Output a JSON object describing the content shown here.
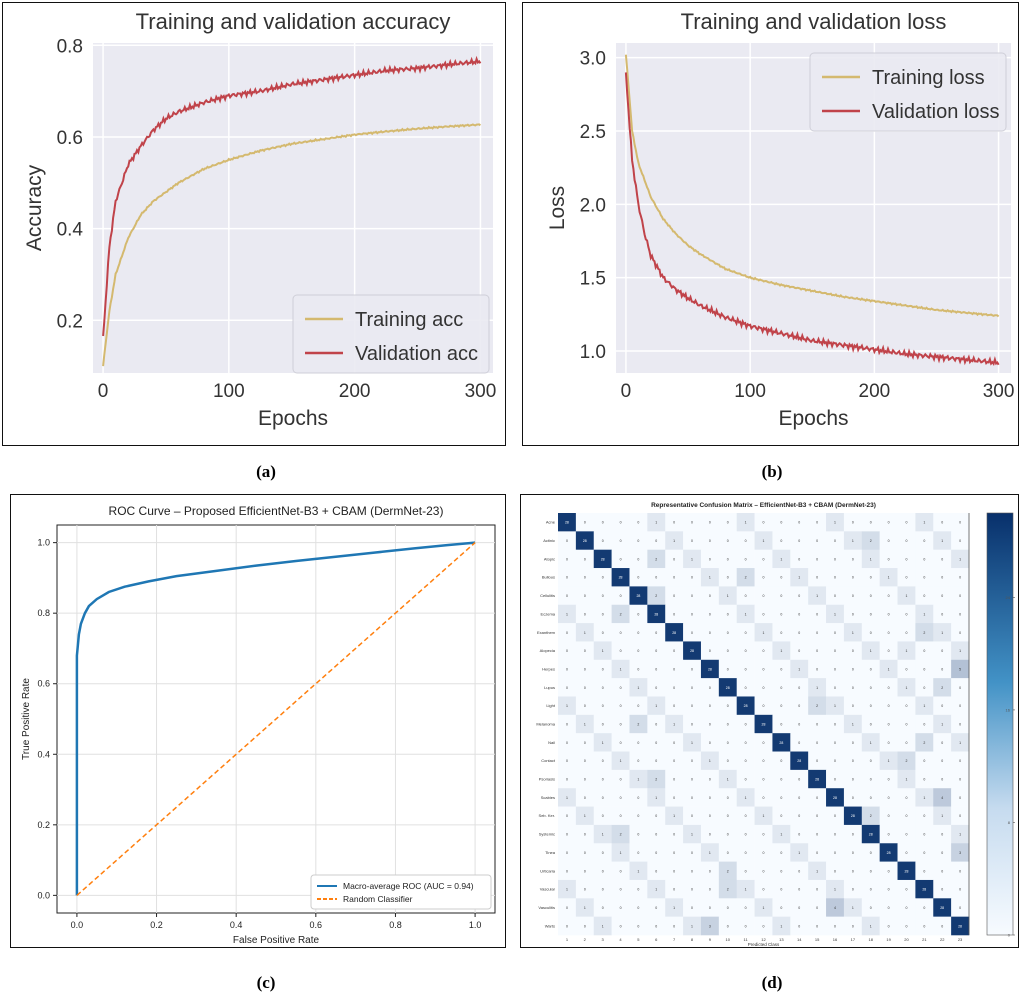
{
  "captions": {
    "a": "(a)",
    "b": "(b)",
    "c": "(c)",
    "d": "(d)"
  },
  "colors": {
    "train": "#d4b96f",
    "val": "#c0434a",
    "plot_bg": "#eaeaf2",
    "roc": "#1f77b4",
    "random": "#ff7f0e",
    "cm_dark": "#08306b",
    "cm_light": "#f7fbff"
  },
  "chart_data": [
    {
      "id": "a",
      "type": "line",
      "title": "Training and validation accuracy",
      "xlabel": "Epochs",
      "ylabel": "Accuracy",
      "xlim": [
        -8,
        310
      ],
      "ylim": [
        0.085,
        0.805
      ],
      "xticks": [
        0,
        100,
        200,
        300
      ],
      "xtick_labels": [
        "0",
        "100",
        "200",
        "300"
      ],
      "yticks": [
        0.2,
        0.4,
        0.6,
        0.8
      ],
      "ytick_labels": [
        "0.2",
        "0.4",
        "0.6",
        "0.8"
      ],
      "grid": true,
      "legend_position": "lower-right",
      "series": [
        {
          "name": "Training acc",
          "color": "#d4b96f",
          "x": [
            0,
            5,
            10,
            20,
            30,
            40,
            50,
            60,
            80,
            100,
            125,
            150,
            175,
            200,
            225,
            250,
            275,
            300
          ],
          "y": [
            0.1,
            0.22,
            0.3,
            0.38,
            0.43,
            0.46,
            0.48,
            0.5,
            0.53,
            0.55,
            0.57,
            0.585,
            0.595,
            0.605,
            0.612,
            0.618,
            0.623,
            0.627
          ]
        },
        {
          "name": "Validation acc",
          "color": "#c0434a",
          "x": [
            0,
            5,
            10,
            15,
            20,
            30,
            40,
            50,
            60,
            80,
            100,
            125,
            150,
            175,
            200,
            225,
            250,
            275,
            300
          ],
          "y": [
            0.16,
            0.36,
            0.46,
            0.5,
            0.54,
            0.58,
            0.615,
            0.64,
            0.655,
            0.675,
            0.69,
            0.7,
            0.715,
            0.725,
            0.735,
            0.745,
            0.75,
            0.758,
            0.765
          ]
        }
      ]
    },
    {
      "id": "b",
      "type": "line",
      "title": "Training and validation loss",
      "xlabel": "Epochs",
      "ylabel": "Loss",
      "xlim": [
        -8,
        310
      ],
      "ylim": [
        0.85,
        3.1
      ],
      "xticks": [
        0,
        100,
        200,
        300
      ],
      "xtick_labels": [
        "0",
        "100",
        "200",
        "300"
      ],
      "yticks": [
        1.0,
        1.5,
        2.0,
        2.5,
        3.0
      ],
      "ytick_labels": [
        "1.0",
        "1.5",
        "2.0",
        "2.5",
        "3.0"
      ],
      "grid": true,
      "legend_position": "upper-right",
      "series": [
        {
          "name": "Training loss",
          "color": "#d4b96f",
          "x": [
            0,
            5,
            10,
            20,
            30,
            40,
            50,
            60,
            80,
            100,
            125,
            150,
            175,
            200,
            225,
            250,
            275,
            300
          ],
          "y": [
            3.02,
            2.5,
            2.28,
            2.05,
            1.9,
            1.8,
            1.72,
            1.66,
            1.56,
            1.5,
            1.45,
            1.41,
            1.37,
            1.34,
            1.31,
            1.28,
            1.26,
            1.24
          ]
        },
        {
          "name": "Validation loss",
          "color": "#c0434a",
          "x": [
            0,
            5,
            10,
            15,
            20,
            30,
            40,
            50,
            60,
            80,
            100,
            125,
            150,
            175,
            200,
            225,
            250,
            275,
            300
          ],
          "y": [
            2.88,
            2.3,
            2.0,
            1.8,
            1.65,
            1.5,
            1.42,
            1.36,
            1.31,
            1.23,
            1.17,
            1.12,
            1.07,
            1.04,
            1.01,
            0.98,
            0.96,
            0.94,
            0.92
          ]
        }
      ]
    },
    {
      "id": "c",
      "type": "line",
      "title": "ROC Curve – Proposed EfficientNet-B3 + CBAM (DermNet-23)",
      "xlabel": "False Positive Rate",
      "ylabel": "True Positive Rate",
      "xlim": [
        -0.05,
        1.05
      ],
      "ylim": [
        -0.05,
        1.05
      ],
      "xticks": [
        0.0,
        0.2,
        0.4,
        0.6,
        0.8,
        1.0
      ],
      "xtick_labels": [
        "0.0",
        "0.2",
        "0.4",
        "0.6",
        "0.8",
        "1.0"
      ],
      "yticks": [
        0.0,
        0.2,
        0.4,
        0.6,
        0.8,
        1.0
      ],
      "ytick_labels": [
        "0.0",
        "0.2",
        "0.4",
        "0.6",
        "0.8",
        "1.0"
      ],
      "grid": true,
      "legend_position": "lower-right",
      "series": [
        {
          "name": "Macro-average ROC (AUC = 0.94)",
          "color": "#1f77b4",
          "x": [
            0,
            0,
            0.005,
            0.01,
            0.02,
            0.03,
            0.05,
            0.08,
            0.12,
            0.18,
            0.25,
            0.35,
            0.45,
            0.55,
            0.65,
            0.75,
            0.85,
            0.93,
            1.0
          ],
          "y": [
            0,
            0.68,
            0.74,
            0.77,
            0.8,
            0.82,
            0.84,
            0.86,
            0.875,
            0.89,
            0.905,
            0.92,
            0.935,
            0.948,
            0.96,
            0.972,
            0.984,
            0.993,
            1.0
          ]
        },
        {
          "name": "Random Classifier",
          "color": "#ff7f0e",
          "dashed": true,
          "x": [
            0,
            1
          ],
          "y": [
            0,
            1
          ]
        }
      ]
    },
    {
      "id": "d",
      "type": "heatmap",
      "title": "Representative Confusion Matrix – EfficientNet-B3 + CBAM (DermNet-23)",
      "xlabel": "Predicted Class",
      "ylabel": "",
      "size": 23,
      "x_labels": [
        "1",
        "2",
        "3",
        "4",
        "5",
        "6",
        "7",
        "8",
        "9",
        "10",
        "11",
        "12",
        "13",
        "14",
        "15",
        "16",
        "17",
        "18",
        "19",
        "20",
        "21",
        "22",
        "23"
      ],
      "y_labels": [
        "Acne",
        "Actinic",
        "Atopic",
        "Bullous",
        "Cellulitis",
        "Eczema",
        "Exanthem",
        "Alopecia",
        "Herpes",
        "Lupus",
        "Light",
        "Melanoma",
        "Nail",
        "Contact",
        "Psoriasis",
        "Scabies",
        "Seb. Ker.",
        "Systemic",
        "Tinea",
        "Urticaria",
        "Vascular",
        "Vasculitis",
        "Warts"
      ],
      "diagonal_value": 28,
      "colorbar_ticks": [
        0,
        8,
        16,
        24
      ],
      "colorbar_max": 30,
      "highlights": [
        {
          "row": 8,
          "col": 22,
          "value": 5
        },
        {
          "row": 15,
          "col": 21,
          "value": 4
        },
        {
          "row": 21,
          "col": 15,
          "value": 4
        },
        {
          "row": 22,
          "col": 8,
          "value": 3
        },
        {
          "row": 18,
          "col": 22,
          "value": 3
        },
        {
          "row": 9,
          "col": 21,
          "value": 2
        },
        {
          "row": 12,
          "col": 20,
          "value": 2
        },
        {
          "row": 4,
          "col": 5,
          "value": 2
        },
        {
          "row": 2,
          "col": 5,
          "value": 2
        },
        {
          "row": 14,
          "col": 5,
          "value": 2
        },
        {
          "row": 16,
          "col": 17,
          "value": 2
        },
        {
          "row": 1,
          "col": 17,
          "value": 2
        },
        {
          "row": 19,
          "col": 9,
          "value": 2
        },
        {
          "row": 13,
          "col": 19,
          "value": 2
        },
        {
          "row": 5,
          "col": 3,
          "value": 2
        },
        {
          "row": 17,
          "col": 3,
          "value": 2
        },
        {
          "row": 11,
          "col": 4,
          "value": 2
        },
        {
          "row": 10,
          "col": 14,
          "value": 2
        },
        {
          "row": 6,
          "col": 20,
          "value": 2
        },
        {
          "row": 20,
          "col": 9,
          "value": 2
        },
        {
          "row": 3,
          "col": 10,
          "value": 2
        },
        {
          "row": 7,
          "col": 19,
          "value": 1
        }
      ]
    }
  ]
}
